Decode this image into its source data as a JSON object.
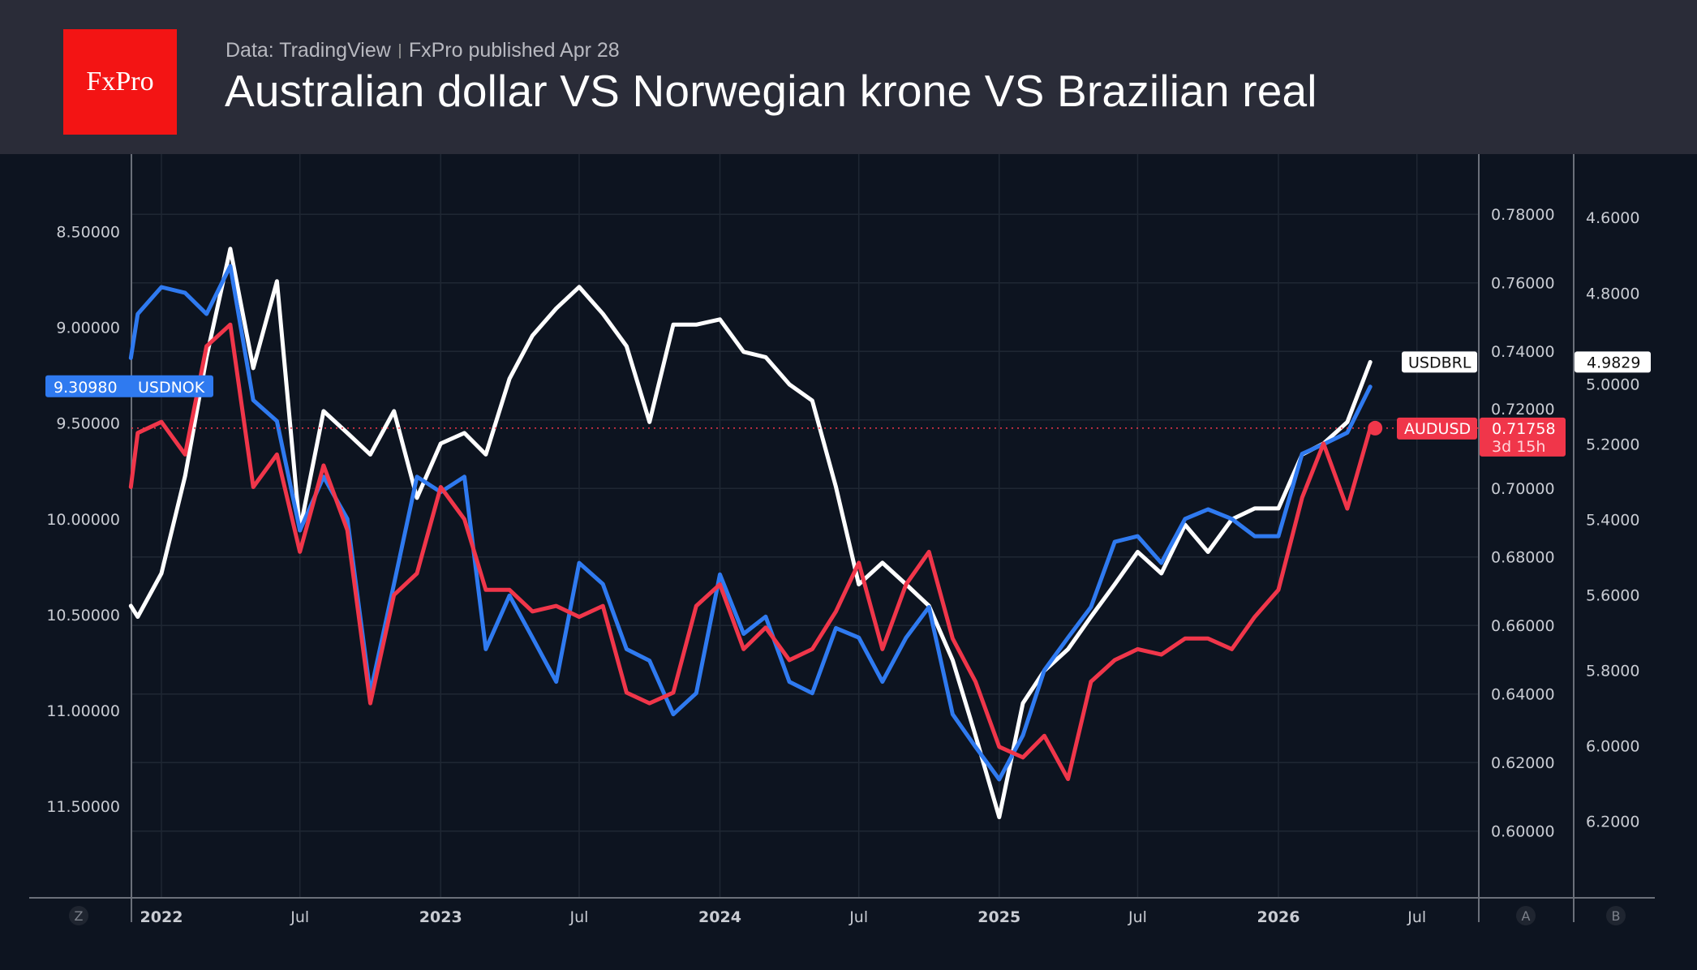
{
  "header": {
    "logo_text": "FxPro",
    "source": "Data: TradingView",
    "published": "FxPro published Apr 28",
    "title": "Australian dollar VS Norwegian krone VS Brazilian real"
  },
  "colors": {
    "USDNOK": "#2f7af0",
    "AUDUSD": "#f0364a",
    "USDBRL": "#ffffff",
    "background": "#0d1420",
    "header": "#2a2c38"
  },
  "chart_data": {
    "type": "line",
    "title": "Australian dollar VS Norwegian krone VS Brazilian real",
    "grid": true,
    "x": [
      "2021-11-22",
      "2021-12-01",
      "2022-01-01",
      "2022-02-01",
      "2022-03-01",
      "2022-04-01",
      "2022-05-01",
      "2022-06-01",
      "2022-07-01",
      "2022-08-01",
      "2022-09-01",
      "2022-10-01",
      "2022-11-01",
      "2022-12-01",
      "2023-01-01",
      "2023-02-01",
      "2023-03-01",
      "2023-04-01",
      "2023-05-01",
      "2023-06-01",
      "2023-07-01",
      "2023-08-01",
      "2023-09-01",
      "2023-10-01",
      "2023-11-01",
      "2023-12-01",
      "2024-01-01",
      "2024-02-01",
      "2024-03-01",
      "2024-04-01",
      "2024-05-01",
      "2024-06-01",
      "2024-07-01",
      "2024-08-01",
      "2024-09-01",
      "2024-10-01",
      "2024-11-01",
      "2024-12-01",
      "2025-01-01",
      "2025-02-01",
      "2025-03-01",
      "2025-04-01",
      "2025-05-01",
      "2025-06-01",
      "2025-07-01",
      "2025-08-01",
      "2025-09-01",
      "2025-10-01",
      "2025-11-01",
      "2025-12-01",
      "2026-01-01",
      "2026-02-01",
      "2026-03-01",
      "2026-04-01",
      "2026-05-01"
    ],
    "x_ticks": [
      {
        "date": "2022-01-01",
        "label": "2022",
        "bold": true
      },
      {
        "date": "2022-07-01",
        "label": "Jul",
        "bold": false
      },
      {
        "date": "2023-01-01",
        "label": "2023",
        "bold": true
      },
      {
        "date": "2023-07-01",
        "label": "Jul",
        "bold": false
      },
      {
        "date": "2024-01-01",
        "label": "2024",
        "bold": true
      },
      {
        "date": "2024-07-01",
        "label": "Jul",
        "bold": false
      },
      {
        "date": "2025-01-01",
        "label": "2025",
        "bold": true
      },
      {
        "date": "2025-07-01",
        "label": "Jul",
        "bold": false
      },
      {
        "date": "2026-01-01",
        "label": "2026",
        "bold": true
      },
      {
        "date": "2026-07-01",
        "label": "Jul",
        "bold": false
      }
    ],
    "series": [
      {
        "name": "USDNOK",
        "axis": "left",
        "color": "#2f7af0",
        "last_label": "9.30980",
        "values": [
          9.16,
          8.93,
          8.79,
          8.82,
          8.93,
          8.68,
          9.38,
          9.49,
          10.06,
          9.78,
          10.0,
          10.91,
          10.34,
          9.78,
          9.86,
          9.78,
          10.68,
          10.4,
          10.62,
          10.85,
          10.23,
          10.34,
          10.68,
          10.74,
          11.02,
          10.91,
          10.29,
          10.6,
          10.51,
          10.85,
          10.91,
          10.57,
          10.62,
          10.85,
          10.62,
          10.46,
          11.02,
          11.19,
          11.36,
          11.13,
          10.79,
          10.62,
          10.46,
          10.12,
          10.09,
          10.23,
          10.0,
          9.95,
          10.0,
          10.09,
          10.09,
          9.66,
          9.61,
          9.55,
          9.3098
        ]
      },
      {
        "name": "AUDUSD",
        "axis": "right_a",
        "color": "#f0364a",
        "last_label": "0.71758",
        "countdown": "3d 15h",
        "values": [
          0.7004,
          0.7162,
          0.7194,
          0.7099,
          0.7415,
          0.7478,
          0.7004,
          0.7099,
          0.6815,
          0.7067,
          0.6878,
          0.6373,
          0.6689,
          0.6752,
          0.7004,
          0.691,
          0.6704,
          0.6704,
          0.6641,
          0.6657,
          0.6625,
          0.6657,
          0.6404,
          0.6373,
          0.6404,
          0.6657,
          0.672,
          0.6531,
          0.6594,
          0.6499,
          0.6531,
          0.6641,
          0.6783,
          0.6531,
          0.672,
          0.6815,
          0.6562,
          0.6436,
          0.6246,
          0.6215,
          0.6278,
          0.6152,
          0.6436,
          0.6499,
          0.6531,
          0.6515,
          0.6562,
          0.6562,
          0.6531,
          0.6625,
          0.6704,
          0.6973,
          0.7131,
          0.6941,
          0.71758
        ]
      },
      {
        "name": "USDBRL",
        "axis": "right_b",
        "color": "#ffffff",
        "last_label": "4.9829",
        "values": [
          5.629,
          5.658,
          5.543,
          5.285,
          4.97,
          4.683,
          4.999,
          4.769,
          5.429,
          5.113,
          5.171,
          5.228,
          5.113,
          5.343,
          5.199,
          5.171,
          5.228,
          5.027,
          4.913,
          4.841,
          4.784,
          4.855,
          4.941,
          5.142,
          4.884,
          4.884,
          4.87,
          4.956,
          4.97,
          5.042,
          5.085,
          5.314,
          5.572,
          5.515,
          5.572,
          5.629,
          5.773,
          5.973,
          6.189,
          5.887,
          5.801,
          5.744,
          5.658,
          5.572,
          5.486,
          5.543,
          5.414,
          5.486,
          5.4,
          5.371,
          5.371,
          5.228,
          5.199,
          5.142,
          4.9829
        ]
      }
    ],
    "axes": {
      "left": {
        "inverted": true,
        "ylim": [
          8.2,
          11.9
        ],
        "ticks": [
          "8.50000",
          "9.00000",
          "9.50000",
          "10.00000",
          "10.50000",
          "11.00000",
          "11.50000"
        ],
        "letter": "Z"
      },
      "right_a": {
        "ylim": [
          0.575,
          0.79
        ],
        "ticks": [
          "0.78000",
          "0.76000",
          "0.74000",
          "0.72000",
          "0.70000",
          "0.68000",
          "0.66000",
          "0.64000",
          "0.62000",
          "0.60000"
        ],
        "letter": "A"
      },
      "right_b": {
        "inverted": true,
        "ylim": [
          4.45,
          6.45
        ],
        "ticks": [
          "4.6000",
          "4.8000",
          "5.0000",
          "5.2000",
          "5.4000",
          "5.6000",
          "5.8000",
          "6.0000",
          "6.2000"
        ],
        "letter": "B"
      }
    }
  }
}
